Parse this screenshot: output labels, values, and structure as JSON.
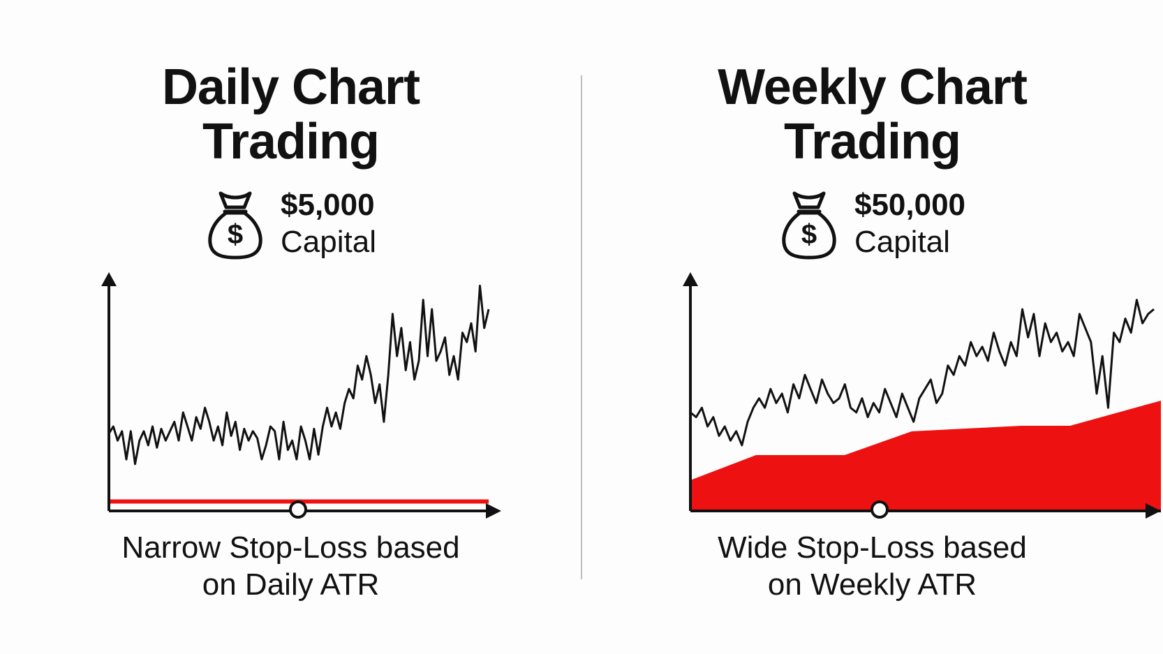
{
  "colors": {
    "stop": "#ee1111",
    "line": "#111111",
    "background": "#fdfdfd"
  },
  "panels": [
    {
      "title": "Daily Chart\nTrading",
      "capital_amount": "$5,000",
      "capital_label": "Capital",
      "icon": "money-bag-icon",
      "caption": "Narrow Stop-Loss based\non Daily ATR"
    },
    {
      "title": "Weekly Chart\nTrading",
      "capital_amount": "$50,000",
      "capital_label": "Capital",
      "icon": "money-bag-icon",
      "caption": "Wide Stop-Loss based\non Weekly ATR"
    }
  ],
  "chart_data": [
    {
      "type": "line",
      "ylim": [
        0,
        100
      ],
      "price": [
        33,
        36,
        30,
        34,
        22,
        34,
        20,
        30,
        34,
        28,
        36,
        27,
        35,
        30,
        34,
        38,
        30,
        42,
        36,
        30,
        40,
        35,
        44,
        38,
        30,
        36,
        28,
        42,
        32,
        38,
        26,
        35,
        30,
        34,
        31,
        22,
        28,
        36,
        34,
        22,
        38,
        26,
        30,
        22,
        36,
        30,
        22,
        35,
        24,
        36,
        44,
        36,
        42,
        35,
        46,
        52,
        48,
        62,
        56,
        66,
        58,
        46,
        54,
        38,
        58,
        84,
        66,
        78,
        60,
        72,
        56,
        64,
        90,
        66,
        86,
        64,
        68,
        74,
        58,
        66,
        56,
        76,
        72,
        80,
        68,
        96,
        78,
        86
      ],
      "stop": [
        4,
        4,
        4,
        4,
        4,
        4,
        4,
        4,
        4,
        4,
        4,
        4,
        4,
        4,
        4,
        4,
        4,
        4,
        4,
        4,
        4,
        4,
        4,
        4,
        4,
        4,
        4,
        4,
        4,
        4,
        4,
        4,
        4,
        4,
        4,
        4,
        4,
        4,
        4,
        4,
        4,
        4,
        4,
        4,
        4,
        4,
        4,
        4,
        4,
        4,
        4,
        4,
        4,
        4,
        4,
        4,
        4,
        4,
        4,
        4,
        4,
        4,
        4,
        4,
        4,
        4,
        4,
        4,
        4,
        4,
        4,
        4,
        4,
        4,
        4,
        4,
        4,
        4,
        4,
        4,
        4,
        4,
        4,
        4,
        4,
        4,
        4,
        4
      ]
    },
    {
      "type": "line",
      "ylim": [
        0,
        100
      ],
      "price": [
        42,
        40,
        44,
        36,
        40,
        32,
        36,
        30,
        34,
        28,
        38,
        44,
        48,
        44,
        52,
        46,
        50,
        42,
        54,
        48,
        58,
        52,
        46,
        56,
        50,
        46,
        48,
        54,
        44,
        42,
        48,
        40,
        46,
        42,
        52,
        46,
        40,
        50,
        44,
        38,
        48,
        52,
        56,
        46,
        50,
        62,
        58,
        66,
        62,
        72,
        66,
        70,
        64,
        76,
        68,
        62,
        72,
        66,
        86,
        74,
        84,
        66,
        80,
        72,
        76,
        68,
        72,
        66,
        84,
        78,
        72,
        50,
        66,
        44,
        76,
        72,
        82,
        76,
        90,
        80,
        84,
        86
      ]
    }
  ]
}
